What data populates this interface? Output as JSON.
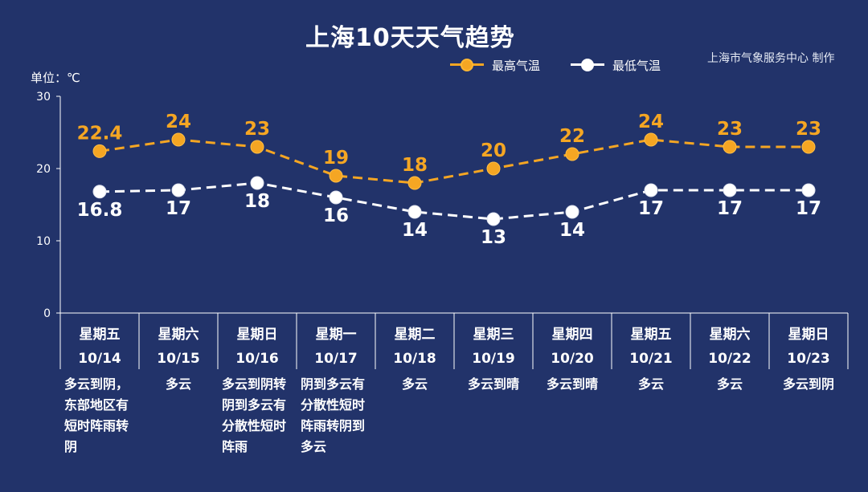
{
  "title": "上海10天天气趋势",
  "credit": "上海市气象服务中心 制作",
  "unit_label": "单位：℃",
  "legend": [
    {
      "label": "最高气温",
      "color": "#f5a623"
    },
    {
      "label": "最低气温",
      "color": "#ffffff"
    }
  ],
  "descriptions": [
    "多云到阴，\n东部地区有\n短时阵雨转\n阴",
    "多云",
    "多云到阴转\n阴到多云有\n分散性短时\n阵雨",
    "阴到多云有\n分散性短时\n阵雨转阴到\n多云",
    "多云",
    "多云到晴",
    "多云到晴",
    "多云",
    "多云",
    "多云到阴"
  ],
  "chart_data": {
    "type": "line",
    "categories": [
      "10/14",
      "10/15",
      "10/16",
      "10/17",
      "10/18",
      "10/19",
      "10/20",
      "10/21",
      "10/22",
      "10/23"
    ],
    "weekdays": [
      "星期五",
      "星期六",
      "星期日",
      "星期一",
      "星期二",
      "星期三",
      "星期四",
      "星期五",
      "星期六",
      "星期日"
    ],
    "series": [
      {
        "name": "最高气温",
        "color": "#f5a623",
        "values": [
          22.4,
          24,
          23,
          19,
          18,
          20,
          22,
          24,
          23,
          23
        ]
      },
      {
        "name": "最低气温",
        "color": "#ffffff",
        "values": [
          16.8,
          17,
          18,
          16,
          14,
          13,
          14,
          17,
          17,
          17
        ]
      }
    ],
    "ylim": [
      0,
      30
    ],
    "yticks": [
      0,
      10,
      20,
      30
    ],
    "ylabel": "单位：℃",
    "legend_position": "top-right",
    "line_style": "dashed"
  }
}
